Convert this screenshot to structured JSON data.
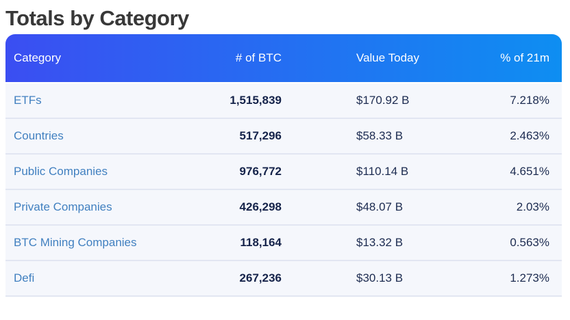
{
  "page": {
    "title": "Totals by Category"
  },
  "table": {
    "columns": [
      {
        "label": "Category",
        "align": "left"
      },
      {
        "label": "# of BTC",
        "align": "right"
      },
      {
        "label": "Value Today",
        "align": "left"
      },
      {
        "label": "% of 21m",
        "align": "right"
      }
    ],
    "rows": [
      {
        "category": "ETFs",
        "btc": "1,515,839",
        "value_today": "$170.92 B",
        "pct_of_21m": "7.218%"
      },
      {
        "category": "Countries",
        "btc": "517,296",
        "value_today": "$58.33 B",
        "pct_of_21m": "2.463%"
      },
      {
        "category": "Public Companies",
        "btc": "976,772",
        "value_today": "$110.14 B",
        "pct_of_21m": "4.651%"
      },
      {
        "category": "Private Companies",
        "btc": "426,298",
        "value_today": "$48.07 B",
        "pct_of_21m": "2.03%"
      },
      {
        "category": "BTC Mining Companies",
        "btc": "118,164",
        "value_today": "$13.32 B",
        "pct_of_21m": "0.563%"
      },
      {
        "category": "Defi",
        "btc": "267,236",
        "value_today": "$30.13 B",
        "pct_of_21m": "1.273%"
      }
    ]
  },
  "colors": {
    "header_gradient_start": "#3b4ef2",
    "header_gradient_end": "#0e8ef2",
    "header_text": "#ffffff",
    "row_bg": "#f5f7fc",
    "row_divider": "#e2e6f2",
    "category_link": "#4180c0",
    "number_text": "#15234a",
    "value_text": "#1c2b50",
    "title_text": "#383838"
  }
}
